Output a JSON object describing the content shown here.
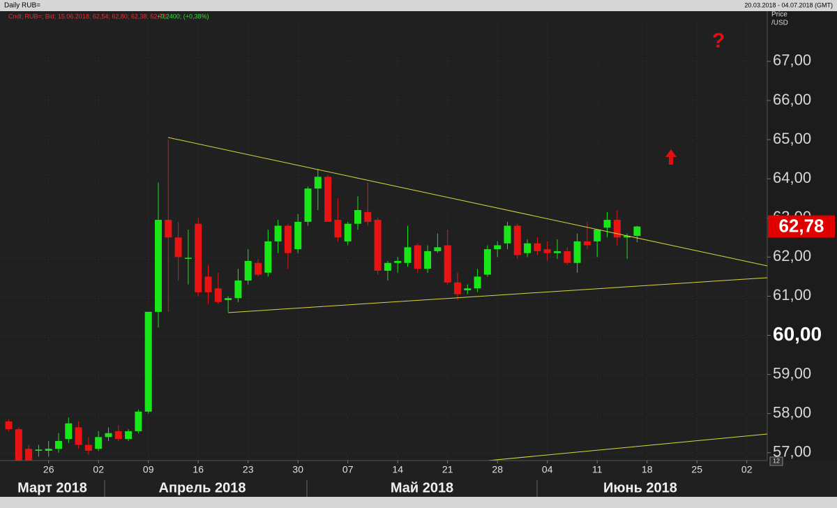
{
  "window_title": "Daily RUB=",
  "date_range": "20.03.2018 - 04.07.2018 (GMT)",
  "chart_data": {
    "type": "candlestick",
    "legend_info": "Cndl; RUB=; Bid; 15.06.2018; 62,54; 62,80; 62,38; 62,78;",
    "legend_change": "+0,2400; (+0,38%)",
    "y_axis_label": "Price",
    "y_axis_unit": "/USD",
    "annotation": "?",
    "corner_label": "12",
    "month_labels": [
      "Март 2018",
      "Апрель 2018",
      "Май 2018",
      "Июнь 2018"
    ],
    "up_color": "#19e619",
    "down_color": "#e81414",
    "grid": true,
    "categories": [
      null,
      null,
      null,
      null,
      "26",
      null,
      null,
      null,
      null,
      "02",
      null,
      null,
      null,
      null,
      "09",
      null,
      null,
      null,
      null,
      "16",
      null,
      null,
      null,
      null,
      "23",
      null,
      null,
      null,
      null,
      "30",
      null,
      null,
      null,
      null,
      "07",
      null,
      null,
      null,
      null,
      "14",
      null,
      null,
      null,
      null,
      "21",
      null,
      null,
      null,
      null,
      "28",
      null,
      null,
      null,
      null,
      "04",
      null,
      null,
      null,
      null,
      "11",
      null,
      null,
      null,
      null,
      "18",
      null,
      null,
      null,
      null,
      "25",
      null,
      null,
      null,
      null,
      "02",
      null,
      null
    ],
    "open": [
      57.8,
      57.6,
      57.1,
      57.05,
      57.05,
      57.1,
      57.35,
      57.65,
      57.2,
      57.1,
      57.4,
      57.55,
      57.35,
      57.55,
      58.05,
      60.6,
      62.95,
      62.5,
      61.97,
      62.85,
      61.5,
      61.2,
      60.9,
      60.95,
      61.4,
      61.85,
      61.6,
      62.4,
      62.8,
      62.2,
      62.9,
      63.75,
      64.05,
      62.95,
      62.4,
      62.85,
      63.15,
      62.95,
      61.65,
      61.85,
      61.85,
      62.3,
      61.7,
      62.15,
      62.3,
      61.35,
      61.15,
      61.2,
      61.55,
      62.2,
      62.35,
      62.8,
      62.1,
      62.35,
      62.2,
      62.1,
      62.15,
      61.85,
      62.4,
      62.4,
      62.75,
      62.95,
      62.5,
      62.54,
      null,
      null,
      null,
      null,
      null,
      null,
      null,
      null,
      null,
      null,
      null,
      null,
      null
    ],
    "high": [
      57.85,
      57.65,
      57.2,
      57.2,
      57.3,
      57.5,
      57.9,
      57.8,
      57.4,
      57.55,
      57.65,
      57.7,
      57.6,
      58.1,
      60.6,
      63.9,
      65.0,
      62.9,
      62.7,
      63.0,
      61.8,
      61.6,
      61.0,
      61.7,
      62.2,
      61.95,
      62.7,
      62.95,
      62.85,
      63.1,
      63.8,
      64.25,
      64.1,
      63.5,
      62.9,
      63.55,
      63.9,
      63.0,
      61.9,
      62.0,
      62.8,
      62.35,
      62.3,
      62.6,
      62.7,
      61.6,
      61.3,
      61.7,
      62.3,
      62.4,
      62.9,
      62.85,
      62.45,
      62.5,
      62.4,
      62.45,
      62.25,
      62.6,
      62.9,
      62.7,
      63.15,
      63.2,
      62.6,
      62.8,
      null,
      null,
      null,
      null,
      null,
      null,
      null,
      null,
      null,
      null,
      null,
      null,
      null
    ],
    "low": [
      57.55,
      56.7,
      56.6,
      56.9,
      56.9,
      57.0,
      57.25,
      57.1,
      56.95,
      57.05,
      57.3,
      57.3,
      57.3,
      57.5,
      58.0,
      60.2,
      60.6,
      61.4,
      61.3,
      61.0,
      60.8,
      60.8,
      60.6,
      60.85,
      61.3,
      61.5,
      61.5,
      62.1,
      61.7,
      62.1,
      62.8,
      63.2,
      62.9,
      62.4,
      62.3,
      62.7,
      62.8,
      61.55,
      61.4,
      61.6,
      61.75,
      61.6,
      61.6,
      62.1,
      61.3,
      60.9,
      61.05,
      61.1,
      61.5,
      62.0,
      62.2,
      61.95,
      62.0,
      62.05,
      61.9,
      61.95,
      61.8,
      61.6,
      62.2,
      62.0,
      62.5,
      62.3,
      61.95,
      62.38,
      null,
      null,
      null,
      null,
      null,
      null,
      null,
      null,
      null,
      null,
      null,
      null,
      null
    ],
    "close": [
      57.6,
      56.75,
      56.75,
      57.08,
      57.1,
      57.3,
      57.75,
      57.2,
      57.05,
      57.4,
      57.5,
      57.35,
      57.55,
      58.05,
      60.6,
      62.95,
      62.5,
      62.0,
      61.98,
      61.1,
      61.1,
      60.85,
      60.95,
      61.4,
      61.9,
      61.55,
      62.4,
      62.8,
      62.1,
      62.9,
      63.75,
      64.05,
      62.9,
      62.5,
      62.85,
      63.2,
      62.9,
      61.65,
      61.85,
      61.9,
      62.25,
      61.7,
      62.15,
      62.25,
      61.35,
      61.05,
      61.2,
      61.5,
      62.2,
      62.3,
      62.8,
      62.05,
      62.35,
      62.15,
      62.1,
      62.15,
      61.85,
      62.4,
      62.3,
      62.7,
      62.95,
      62.5,
      62.54,
      62.78,
      null,
      null,
      null,
      null,
      null,
      null,
      null,
      null,
      null,
      null,
      null,
      null,
      null
    ],
    "last_price": {
      "value": 62.78,
      "label": "62,78"
    },
    "ylim": [
      56.8,
      68.3
    ],
    "yticks": [
      {
        "value": 57,
        "label": "57,00"
      },
      {
        "value": 58,
        "label": "58,00"
      },
      {
        "value": 59,
        "label": "59,00"
      },
      {
        "value": 60,
        "label": "60,00"
      },
      {
        "value": 61,
        "label": "61,00"
      },
      {
        "value": 62,
        "label": "62,00"
      },
      {
        "value": 63,
        "label": "63,00"
      },
      {
        "value": 64,
        "label": "64,00"
      },
      {
        "value": 65,
        "label": "65,00"
      },
      {
        "value": 66,
        "label": "66,00"
      },
      {
        "value": 67,
        "label": "67,00"
      }
    ]
  }
}
